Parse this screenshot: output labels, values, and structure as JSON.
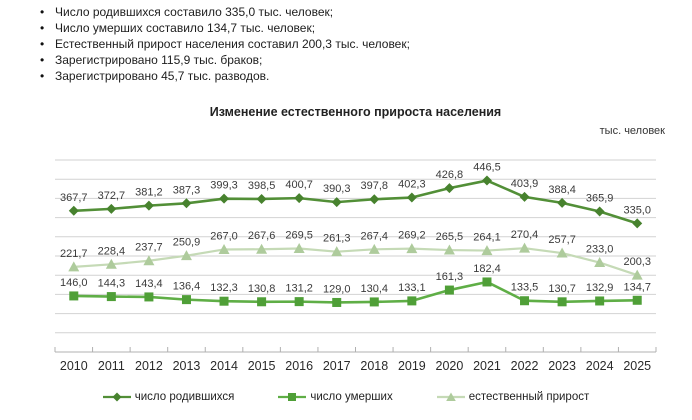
{
  "bullets": [
    "Число родившихся составило 335,0 тыс. человек;",
    "Число умерших составило 134,7 тыс. человек;",
    "Естественный прирост населения составил 200,3 тыс. человек;",
    "Зарегистрировано 115,9 тыс. браков;",
    "Зарегистрировано 45,7 тыс. разводов."
  ],
  "chart_data": {
    "type": "line",
    "title": "Изменение естественного прироста населения",
    "units_label": "тыс. человек",
    "xlabel": "",
    "ylabel": "",
    "x": [
      "2010",
      "2011",
      "2012",
      "2013",
      "2014",
      "2015",
      "2016",
      "2017",
      "2018",
      "2019",
      "2020",
      "2021",
      "2022",
      "2023",
      "2024",
      "2025"
    ],
    "series": [
      {
        "id": "born",
        "name": "число родившихся",
        "marker": "diamond",
        "color": "#528f37",
        "marker_color": "#47822e",
        "values": [
          367.7,
          372.7,
          381.2,
          387.3,
          399.3,
          398.5,
          400.7,
          390.3,
          397.8,
          402.3,
          426.8,
          446.5,
          403.9,
          388.4,
          365.9,
          335.0
        ]
      },
      {
        "id": "died",
        "name": "число умерших",
        "marker": "square",
        "color": "#5fae46",
        "marker_color": "#4f9f37",
        "values": [
          146.0,
          144.3,
          143.4,
          136.4,
          132.3,
          130.8,
          131.2,
          129.0,
          130.4,
          133.1,
          161.3,
          182.4,
          133.5,
          130.7,
          132.9,
          134.7
        ]
      },
      {
        "id": "natural-increase",
        "name": "естественный прирост",
        "marker": "triangle",
        "color": "#c5dab6",
        "marker_color": "#aecb9c",
        "values": [
          221.7,
          228.4,
          237.7,
          250.9,
          267.0,
          267.6,
          269.5,
          261.3,
          267.4,
          269.2,
          265.5,
          264.1,
          270.4,
          257.7,
          233.0,
          200.3
        ]
      }
    ],
    "ylim": [
      0,
      500
    ],
    "grid_step": 50,
    "grid": true,
    "grid_color": "#d2d2d2",
    "axis_color": "#b0b0b0",
    "label_color": "#3b3b3b",
    "tick_label_color": "#2b2b2b",
    "legend_position": "bottom"
  }
}
